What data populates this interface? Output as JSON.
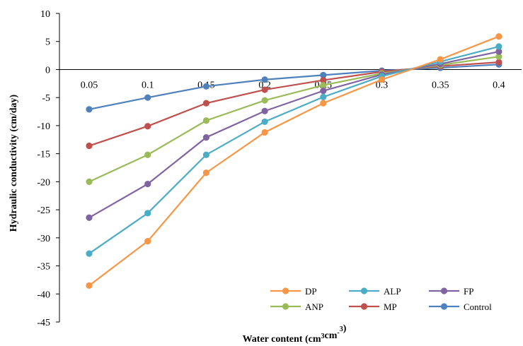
{
  "chart_data": {
    "type": "line",
    "title": "",
    "xlabel": "Water content (cm³cm⁻³)",
    "ylabel": "Hydraulic conductivity (cm/day)",
    "categories": [
      "0.05",
      "0.1",
      "0.15",
      "0.2",
      "0.25",
      "0.3",
      "0.35",
      "0.4"
    ],
    "ylim": [
      -45,
      10
    ],
    "yticks": [
      10,
      5,
      0,
      -5,
      -10,
      -15,
      -20,
      -25,
      -30,
      -35,
      -40,
      -45
    ],
    "ytick_labels": [
      "10",
      "5",
      "0",
      "-5",
      "-10",
      "-15",
      "-20",
      "-25",
      "-30",
      "-35",
      "-40",
      "-45"
    ],
    "grid": false,
    "legend_position": "bottom-right",
    "series": [
      {
        "name": "DP",
        "color": "#F79646",
        "values": [
          -38.5,
          -30.6,
          -18.4,
          -11.2,
          -6.0,
          -1.8,
          1.8,
          5.9
        ]
      },
      {
        "name": "ALP",
        "color": "#4BACC6",
        "values": [
          -32.8,
          -25.6,
          -15.2,
          -9.3,
          -4.9,
          -1.2,
          1.4,
          4.1
        ]
      },
      {
        "name": "FP",
        "color": "#8064A2",
        "values": [
          -26.4,
          -20.4,
          -12.1,
          -7.4,
          -3.8,
          -0.9,
          1.0,
          3.2
        ]
      },
      {
        "name": "ANP",
        "color": "#9BBB59",
        "values": [
          -20.0,
          -15.2,
          -9.1,
          -5.5,
          -2.8,
          -0.7,
          0.8,
          2.3
        ]
      },
      {
        "name": "MP",
        "color": "#C0504D",
        "values": [
          -13.6,
          -10.1,
          -6.0,
          -3.6,
          -1.9,
          -0.4,
          0.6,
          1.3
        ]
      },
      {
        "name": "Control",
        "color": "#4F81BD",
        "values": [
          -7.1,
          -5.0,
          -3.0,
          -1.8,
          -1.0,
          -0.2,
          0.3,
          0.9
        ]
      }
    ]
  }
}
